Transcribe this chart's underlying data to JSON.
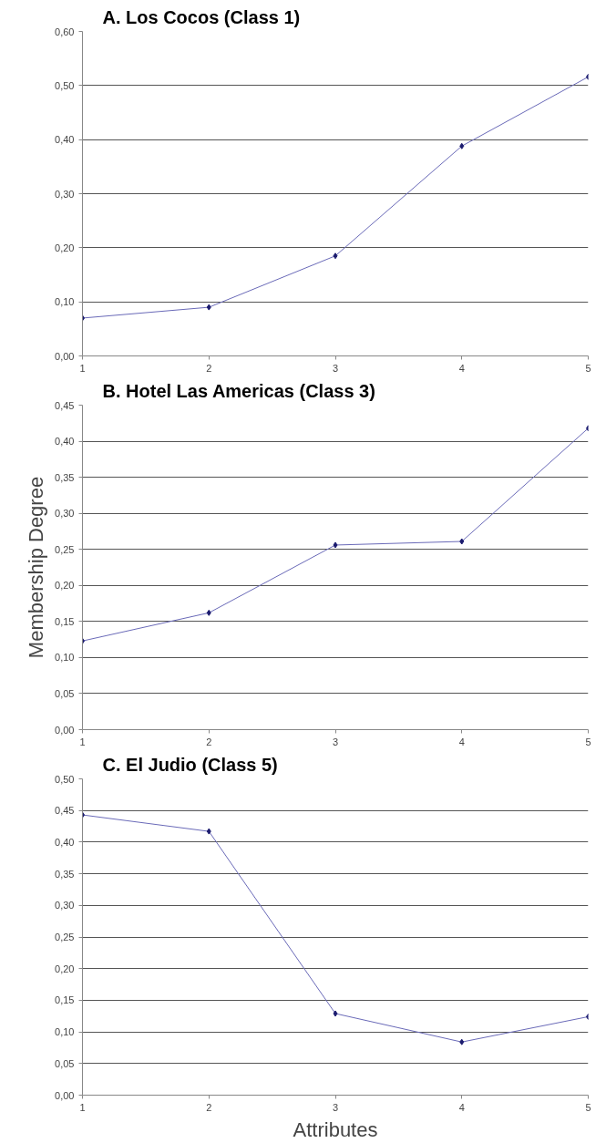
{
  "chart_data": [
    {
      "type": "line",
      "title": "A. Los Cocos (Class 1)",
      "x": [
        1,
        2,
        3,
        4,
        5
      ],
      "series": [
        {
          "color": "#6a6ab8",
          "values": [
            0.07,
            0.09,
            0.185,
            0.388,
            0.516
          ]
        }
      ],
      "xlim": [
        1,
        5
      ],
      "xticks": [
        1,
        2,
        3,
        4,
        5
      ],
      "ylim": [
        0,
        0.6
      ],
      "yticks": [
        {
          "value": 0,
          "label": "0,00"
        },
        {
          "value": 0.1,
          "label": "0,10"
        },
        {
          "value": 0.2,
          "label": "0,20"
        },
        {
          "value": 0.3,
          "label": "0,30"
        },
        {
          "value": 0.4,
          "label": "0,40"
        },
        {
          "value": 0.5,
          "label": "0,50"
        },
        {
          "value": 0.6,
          "label": "0,60"
        }
      ],
      "grid": "y",
      "marker": "diamond",
      "line_style": "solid"
    },
    {
      "type": "line",
      "title": "B. Hotel Las Americas (Class 3)",
      "ylabel": "Membership Degree",
      "x": [
        1,
        2,
        3,
        4,
        5
      ],
      "series": [
        {
          "color": "#6a6ab8",
          "values": [
            0.123,
            0.162,
            0.256,
            0.261,
            0.418
          ]
        }
      ],
      "xlim": [
        1,
        5
      ],
      "xticks": [
        1,
        2,
        3,
        4,
        5
      ],
      "ylim": [
        0,
        0.45
      ],
      "yticks": [
        {
          "value": 0,
          "label": "0,00"
        },
        {
          "value": 0.05,
          "label": "0,05"
        },
        {
          "value": 0.1,
          "label": "0,10"
        },
        {
          "value": 0.15,
          "label": "0,15"
        },
        {
          "value": 0.2,
          "label": "0,20"
        },
        {
          "value": 0.25,
          "label": "0,25"
        },
        {
          "value": 0.3,
          "label": "0,30"
        },
        {
          "value": 0.35,
          "label": "0,35"
        },
        {
          "value": 0.4,
          "label": "0,40"
        },
        {
          "value": 0.45,
          "label": "0,45"
        }
      ],
      "grid": "y",
      "marker": "diamond",
      "line_style": "solid"
    },
    {
      "type": "line",
      "title": "C. El Judio (Class 5)",
      "xlabel": "Attributes",
      "x": [
        1,
        2,
        3,
        4,
        5
      ],
      "series": [
        {
          "color": "#6a6ab8",
          "values": [
            0.443,
            0.417,
            0.129,
            0.084,
            0.124
          ]
        }
      ],
      "xlim": [
        1,
        5
      ],
      "xticks": [
        1,
        2,
        3,
        4,
        5
      ],
      "ylim": [
        0,
        0.5
      ],
      "yticks": [
        {
          "value": 0,
          "label": "0,00"
        },
        {
          "value": 0.05,
          "label": "0,05"
        },
        {
          "value": 0.1,
          "label": "0,10"
        },
        {
          "value": 0.15,
          "label": "0,15"
        },
        {
          "value": 0.2,
          "label": "0,20"
        },
        {
          "value": 0.25,
          "label": "0,25"
        },
        {
          "value": 0.3,
          "label": "0,30"
        },
        {
          "value": 0.35,
          "label": "0,35"
        },
        {
          "value": 0.4,
          "label": "0,40"
        },
        {
          "value": 0.45,
          "label": "0,45"
        },
        {
          "value": 0.5,
          "label": "0,50"
        }
      ],
      "grid": "y",
      "marker": "diamond",
      "line_style": "solid"
    }
  ]
}
